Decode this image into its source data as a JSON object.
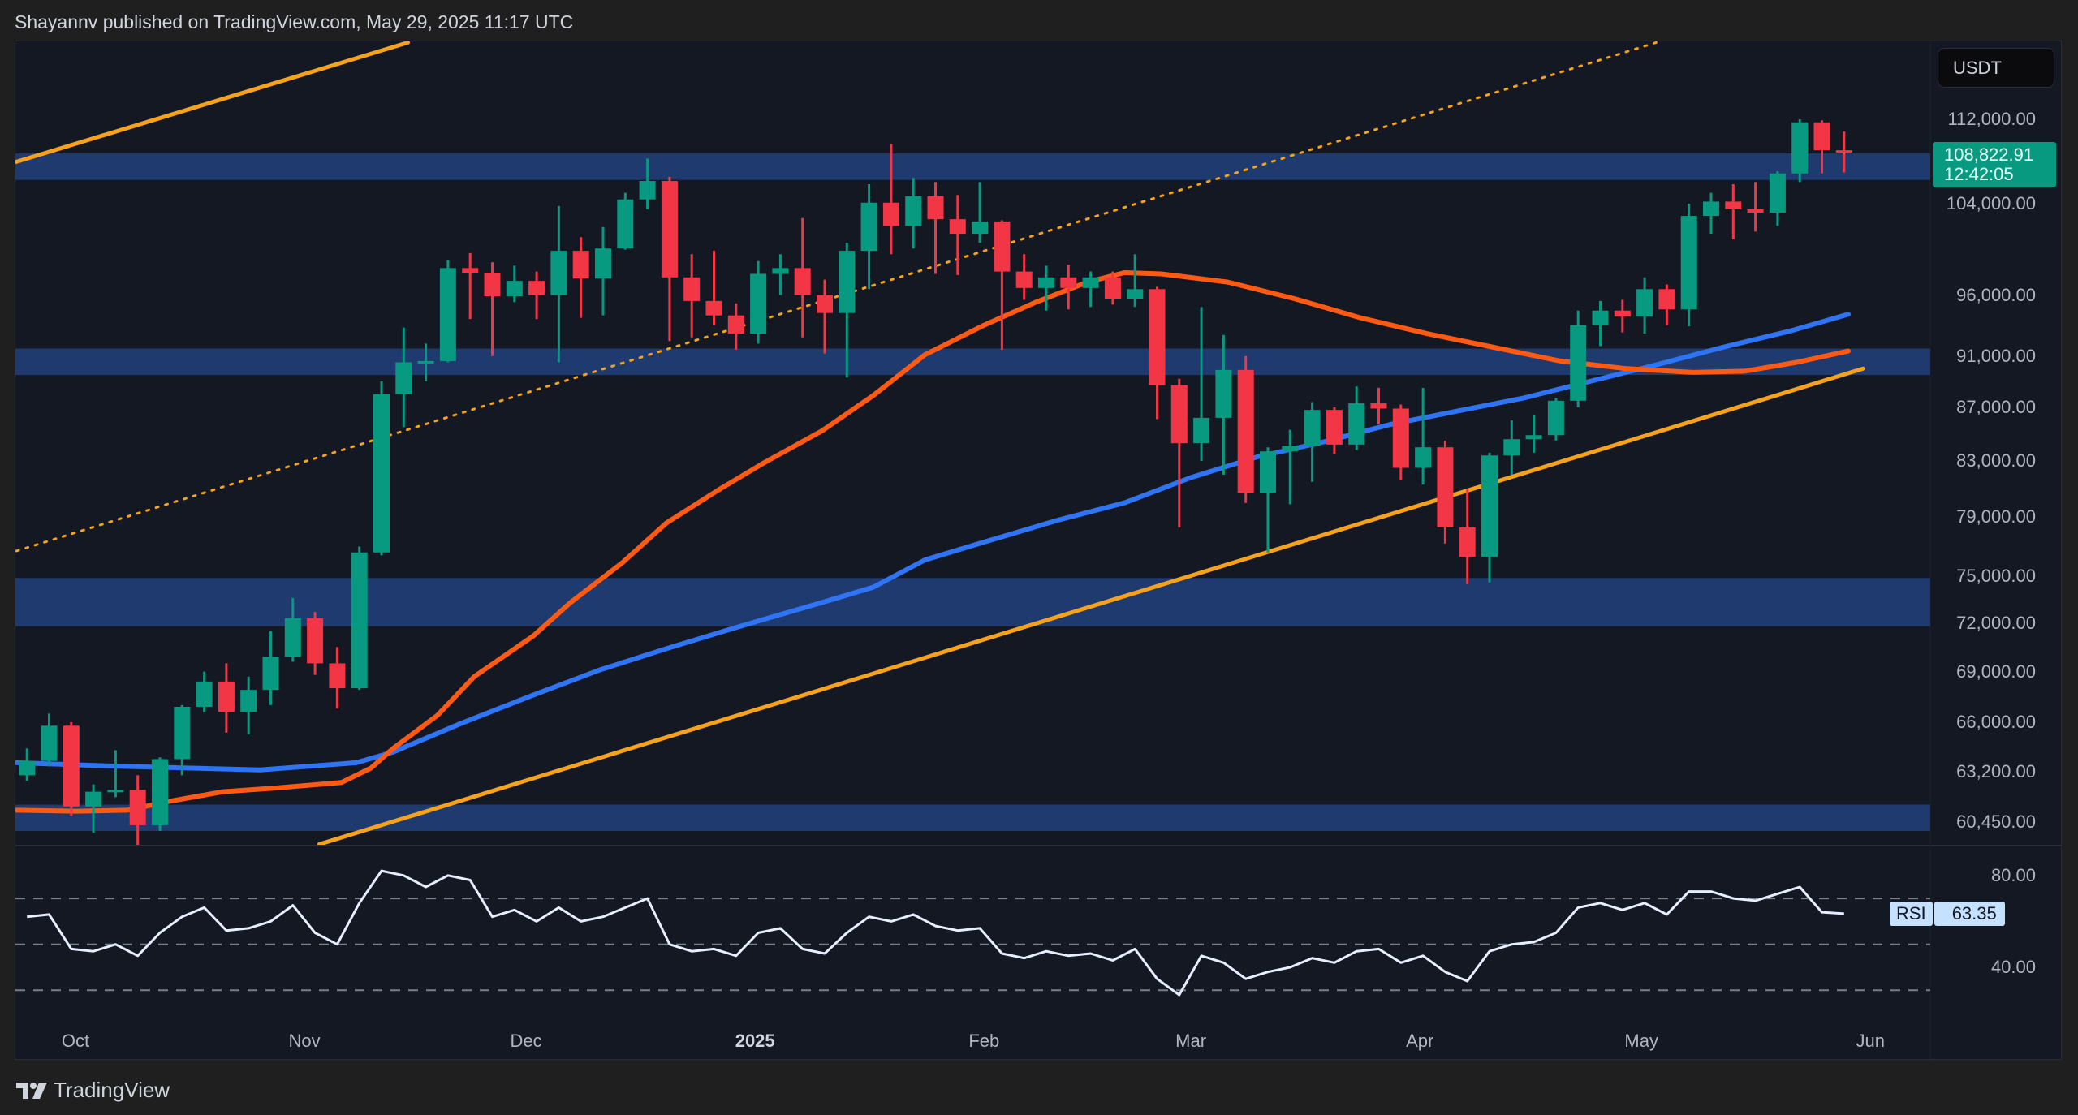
{
  "header": {
    "text": "Shayannv published on TradingView.com, May 29, 2025 11:17 UTC"
  },
  "footer": {
    "brand": "TradingView"
  },
  "colors": {
    "background": "#141823",
    "up": "#089981",
    "down": "#f23645",
    "zone": "#1f3a6e",
    "ma_blue": "#2f74f5",
    "ma_orange": "#ff5a14",
    "trendline": "#f7a21b",
    "rsi_line": "#e6eeff"
  },
  "chart_data": [
    {
      "type": "candlestick",
      "scale": "log",
      "currency": "USDT",
      "last_price": "108,822.91",
      "countdown": "12:42:05",
      "y_ticks": [
        112000,
        104000,
        96000,
        91000,
        87000,
        83000,
        79000,
        75000,
        72000,
        69000,
        66000,
        63200,
        60450
      ],
      "y_tick_labels": [
        "112,000.00",
        "104,000.00",
        "96,000.00",
        "91,000.00",
        "87,000.00",
        "83,000.00",
        "79,000.00",
        "75,000.00",
        "72,000.00",
        "69,000.00",
        "66,000.00",
        "63,200.00",
        "60,450.00"
      ],
      "x_ticks": [
        {
          "label": "Oct",
          "date": "2024-10-01"
        },
        {
          "label": "Nov",
          "date": "2024-11-01"
        },
        {
          "label": "Dec",
          "date": "2024-12-01"
        },
        {
          "label": "2025",
          "date": "2025-01-01",
          "bold": true
        },
        {
          "label": "Feb",
          "date": "2025-02-01"
        },
        {
          "label": "Mar",
          "date": "2025-03-01"
        },
        {
          "label": "Apr",
          "date": "2025-04-01"
        },
        {
          "label": "May",
          "date": "2025-05-01"
        },
        {
          "label": "Jun",
          "date": "2025-06-01"
        }
      ],
      "candles_columns": [
        "date",
        "open",
        "high",
        "low",
        "close"
      ],
      "candles": [
        [
          "2024-09-23",
          63000,
          64500,
          62700,
          63800
        ],
        [
          "2024-09-26",
          63800,
          66500,
          63500,
          65800
        ],
        [
          "2024-09-29",
          65800,
          66000,
          60800,
          61300
        ],
        [
          "2024-10-02",
          61300,
          62500,
          59900,
          62100
        ],
        [
          "2024-10-05",
          62100,
          64400,
          61800,
          62200
        ],
        [
          "2024-10-08",
          62200,
          63000,
          58900,
          60300
        ],
        [
          "2024-10-11",
          60300,
          64000,
          60000,
          63900
        ],
        [
          "2024-10-14",
          63900,
          67000,
          63000,
          66900
        ],
        [
          "2024-10-17",
          66900,
          69000,
          66600,
          68400
        ],
        [
          "2024-10-20",
          68400,
          69500,
          65400,
          66600
        ],
        [
          "2024-10-23",
          66600,
          68700,
          65300,
          67900
        ],
        [
          "2024-10-26",
          67900,
          71500,
          67000,
          69900
        ],
        [
          "2024-10-29",
          69900,
          73600,
          69600,
          72300
        ],
        [
          "2024-11-01",
          72300,
          72700,
          68800,
          69500
        ],
        [
          "2024-11-04",
          69500,
          70500,
          66800,
          68000
        ],
        [
          "2024-11-07",
          68000,
          77000,
          67900,
          76600
        ],
        [
          "2024-11-10",
          76600,
          89000,
          76400,
          88000
        ],
        [
          "2024-11-13",
          88000,
          93300,
          85500,
          90500
        ],
        [
          "2024-11-16",
          90500,
          92000,
          89000,
          90600
        ],
        [
          "2024-11-19",
          90600,
          99000,
          90500,
          98300
        ],
        [
          "2024-11-22",
          98300,
          99600,
          94000,
          97900
        ],
        [
          "2024-11-25",
          97900,
          98800,
          91000,
          95900
        ],
        [
          "2024-11-28",
          95900,
          98500,
          95400,
          97200
        ],
        [
          "2024-12-01",
          97200,
          98000,
          94000,
          96000
        ],
        [
          "2024-12-04",
          96000,
          103800,
          90500,
          99800
        ],
        [
          "2024-12-07",
          99800,
          101000,
          94100,
          97400
        ],
        [
          "2024-12-10",
          97400,
          101900,
          94300,
          100000
        ],
        [
          "2024-12-13",
          100000,
          105000,
          99900,
          104400
        ],
        [
          "2024-12-16",
          104400,
          108200,
          103500,
          106100
        ],
        [
          "2024-12-19",
          106100,
          106500,
          92200,
          97500
        ],
        [
          "2024-12-22",
          97500,
          99500,
          92500,
          95500
        ],
        [
          "2024-12-25",
          95500,
          99800,
          93500,
          94300
        ],
        [
          "2024-12-28",
          94300,
          95300,
          91500,
          92800
        ],
        [
          "2024-12-31",
          92800,
          98900,
          92000,
          97800
        ],
        [
          "2025-01-03",
          97800,
          99500,
          96000,
          98300
        ],
        [
          "2025-01-06",
          98300,
          102700,
          92500,
          96000
        ],
        [
          "2025-01-09",
          96000,
          97300,
          91200,
          94500
        ],
        [
          "2025-01-12",
          94500,
          100500,
          89300,
          99800
        ],
        [
          "2025-01-15",
          99800,
          105800,
          96500,
          104100
        ],
        [
          "2025-01-18",
          104100,
          109600,
          99500,
          102000
        ],
        [
          "2025-01-21",
          102000,
          106400,
          100000,
          104700
        ],
        [
          "2025-01-24",
          104700,
          106000,
          97800,
          102600
        ],
        [
          "2025-01-27",
          102600,
          104800,
          97700,
          101300
        ],
        [
          "2025-01-30",
          101300,
          106000,
          100500,
          102400
        ],
        [
          "2025-02-02",
          102400,
          102500,
          91500,
          98000
        ],
        [
          "2025-02-05",
          98000,
          99500,
          95600,
          96600
        ],
        [
          "2025-02-08",
          96600,
          98500,
          94700,
          97500
        ],
        [
          "2025-02-11",
          97500,
          98600,
          94800,
          96600
        ],
        [
          "2025-02-14",
          96600,
          98000,
          95000,
          97500
        ],
        [
          "2025-02-17",
          97500,
          98000,
          95200,
          95700
        ],
        [
          "2025-02-20",
          95700,
          99500,
          95000,
          96500
        ],
        [
          "2025-02-23",
          96500,
          96700,
          86100,
          88700
        ],
        [
          "2025-02-26",
          88700,
          89200,
          78300,
          84300
        ],
        [
          "2025-03-01",
          84300,
          95000,
          83000,
          86200
        ],
        [
          "2025-03-04",
          86200,
          92700,
          82000,
          89900
        ],
        [
          "2025-03-07",
          89900,
          91000,
          80000,
          80700
        ],
        [
          "2025-03-10",
          80700,
          84000,
          76600,
          83700
        ],
        [
          "2025-03-13",
          83700,
          85300,
          79900,
          84100
        ],
        [
          "2025-03-16",
          84100,
          87400,
          81500,
          86800
        ],
        [
          "2025-03-19",
          86800,
          87000,
          83500,
          84200
        ],
        [
          "2025-03-22",
          84200,
          88600,
          83800,
          87300
        ],
        [
          "2025-03-25",
          87300,
          88500,
          85700,
          86900
        ],
        [
          "2025-03-28",
          86900,
          87200,
          81600,
          82500
        ],
        [
          "2025-03-31",
          82500,
          88500,
          81300,
          84000
        ],
        [
          "2025-04-03",
          84000,
          84500,
          77200,
          78300
        ],
        [
          "2025-04-06",
          78300,
          81000,
          74500,
          76300
        ],
        [
          "2025-04-09",
          76300,
          83600,
          74600,
          83400
        ],
        [
          "2025-04-12",
          83400,
          86000,
          82000,
          84600
        ],
        [
          "2025-04-15",
          84600,
          86400,
          83600,
          84900
        ],
        [
          "2025-04-18",
          84900,
          87700,
          84500,
          87500
        ],
        [
          "2025-04-21",
          87500,
          94700,
          87000,
          93500
        ],
        [
          "2025-04-24",
          93500,
          95500,
          91800,
          94700
        ],
        [
          "2025-04-27",
          94700,
          95600,
          92900,
          94200
        ],
        [
          "2025-04-30",
          94200,
          97500,
          92800,
          96500
        ],
        [
          "2025-05-03",
          96500,
          96900,
          93500,
          94800
        ],
        [
          "2025-05-06",
          94800,
          104000,
          93400,
          102900
        ],
        [
          "2025-05-09",
          102900,
          105000,
          101300,
          104200
        ],
        [
          "2025-05-12",
          104200,
          105800,
          100800,
          103500
        ],
        [
          "2025-05-15",
          103500,
          106000,
          101500,
          103200
        ],
        [
          "2025-05-18",
          103200,
          107000,
          102000,
          106800
        ],
        [
          "2025-05-21",
          106800,
          112000,
          106000,
          111700
        ],
        [
          "2025-05-24",
          111700,
          111900,
          106800,
          109000
        ],
        [
          "2025-05-27",
          109000,
          110800,
          106900,
          108823
        ]
      ],
      "zones": [
        [
          106200,
          108700
        ],
        [
          89500,
          91600
        ],
        [
          71800,
          74900
        ],
        [
          60000,
          61400
        ]
      ],
      "moving_averages": [
        {
          "color": "ma_blue",
          "points": [
            [
              "2024-09-23",
              63700
            ],
            [
              "2024-10-07",
              63500
            ],
            [
              "2024-10-26",
              63300
            ],
            [
              "2024-11-08",
              63700
            ],
            [
              "2024-11-13",
              64300
            ],
            [
              "2024-11-22",
              65900
            ],
            [
              "2024-12-02",
              67600
            ],
            [
              "2024-12-11",
              69100
            ],
            [
              "2024-12-20",
              70400
            ],
            [
              "2024-12-30",
              71800
            ],
            [
              "2025-01-10",
              73300
            ],
            [
              "2025-01-17",
              74300
            ],
            [
              "2025-01-24",
              76100
            ],
            [
              "2025-02-01",
              77300
            ],
            [
              "2025-02-11",
              78800
            ],
            [
              "2025-02-20",
              80000
            ],
            [
              "2025-03-01",
              81800
            ],
            [
              "2025-03-10",
              83300
            ],
            [
              "2025-03-19",
              84400
            ],
            [
              "2025-03-28",
              85700
            ],
            [
              "2025-04-06",
              86700
            ],
            [
              "2025-04-15",
              87700
            ],
            [
              "2025-04-24",
              89000
            ],
            [
              "2025-05-03",
              90300
            ],
            [
              "2025-05-12",
              91700
            ],
            [
              "2025-05-21",
              93000
            ],
            [
              "2025-05-29",
              94400
            ]
          ]
        },
        {
          "color": "ma_orange",
          "points": [
            [
              "2024-09-23",
              61100
            ],
            [
              "2024-10-01",
              61050
            ],
            [
              "2024-10-08",
              61100
            ],
            [
              "2024-10-14",
              61600
            ],
            [
              "2024-10-21",
              62100
            ],
            [
              "2024-10-28",
              62300
            ],
            [
              "2024-11-06",
              62600
            ],
            [
              "2024-11-10",
              63400
            ],
            [
              "2024-11-13",
              64500
            ],
            [
              "2024-11-19",
              66400
            ],
            [
              "2024-11-24",
              68700
            ],
            [
              "2024-12-02",
              71200
            ],
            [
              "2024-12-07",
              73300
            ],
            [
              "2024-12-14",
              75900
            ],
            [
              "2024-12-20",
              78600
            ],
            [
              "2024-12-27",
              80900
            ],
            [
              "2025-01-02",
              82800
            ],
            [
              "2025-01-10",
              85200
            ],
            [
              "2025-01-17",
              87900
            ],
            [
              "2025-01-24",
              91100
            ],
            [
              "2025-02-01",
              93500
            ],
            [
              "2025-02-08",
              95400
            ],
            [
              "2025-02-15",
              97100
            ],
            [
              "2025-02-20",
              97900
            ],
            [
              "2025-02-25",
              97800
            ],
            [
              "2025-03-06",
              97100
            ],
            [
              "2025-03-15",
              95700
            ],
            [
              "2025-03-24",
              94100
            ],
            [
              "2025-04-02",
              92800
            ],
            [
              "2025-04-11",
              91700
            ],
            [
              "2025-04-20",
              90600
            ],
            [
              "2025-04-29",
              90000
            ],
            [
              "2025-05-08",
              89700
            ],
            [
              "2025-05-15",
              89800
            ],
            [
              "2025-05-22",
              90500
            ],
            [
              "2025-05-29",
              91400
            ]
          ]
        }
      ],
      "trendlines": [
        {
          "style": "solid",
          "from": [
            "2024-11-03",
            59300
          ],
          "to": [
            "2025-05-31",
            90000
          ]
        },
        {
          "style": "solid",
          "from": [
            "2024-09-23",
            107900
          ],
          "to": [
            "2024-11-15",
            119800
          ]
        },
        {
          "style": "dotted",
          "from": [
            "2024-09-23",
            76700
          ],
          "to": [
            "2025-05-03",
            119800
          ]
        }
      ]
    },
    {
      "type": "line",
      "name": "RSI",
      "current_value": "63.35",
      "y_ticks": [
        80,
        40
      ],
      "y_tick_labels": [
        "80.00",
        "40.00"
      ],
      "bands": [
        70,
        50,
        30
      ],
      "values": [
        62,
        63,
        48,
        47,
        50,
        45,
        55,
        62,
        66,
        56,
        57,
        60,
        67,
        55,
        50,
        68,
        82,
        80,
        75,
        80,
        78,
        62,
        65,
        60,
        66,
        60,
        62,
        66,
        70,
        50,
        47,
        48,
        45,
        55,
        57,
        48,
        46,
        55,
        62,
        60,
        63,
        58,
        56,
        57,
        46,
        44,
        47,
        45,
        46,
        43,
        48,
        35,
        28,
        45,
        42,
        35,
        38,
        40,
        44,
        42,
        47,
        48,
        42,
        45,
        38,
        34,
        47,
        50,
        51,
        55,
        66,
        68,
        65,
        68,
        63,
        73,
        73,
        70,
        69,
        72,
        75,
        64,
        63.35
      ]
    }
  ]
}
